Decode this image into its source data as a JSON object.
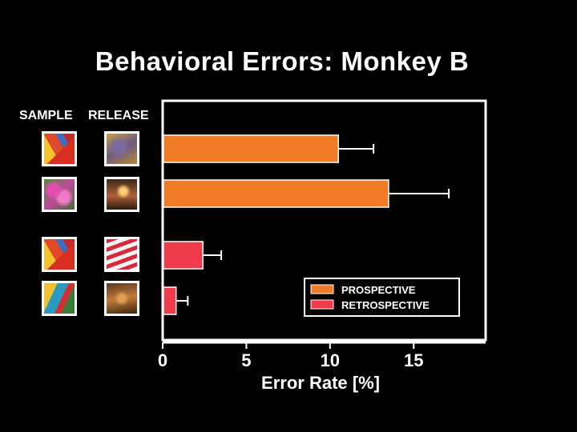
{
  "title": "Behavioral Errors: Monkey B",
  "columns": {
    "sample": "SAMPLE",
    "release": "RELEASE"
  },
  "stimuli": [
    {
      "sample": "sample-image-1-icon",
      "release": "release-image-1-icon"
    },
    {
      "sample": "sample-image-2-icon",
      "release": "release-image-2-icon"
    },
    {
      "sample": "sample-image-3-icon",
      "release": "release-image-3-icon"
    },
    {
      "sample": "sample-image-4-icon",
      "release": "release-image-4-icon"
    }
  ],
  "colors": {
    "prospective": "#f07c28",
    "retrospective": "#ee3a4a",
    "frame": "#ffffff"
  },
  "chart_data": {
    "type": "bar",
    "orientation": "horizontal",
    "xlabel": "Error Rate [%]",
    "xticks": [
      0,
      5,
      10,
      15
    ],
    "xlim": [
      0,
      19.3
    ],
    "legend": {
      "placement": "bottom-right",
      "entries": [
        "PROSPECTIVE",
        "RETROSPECTIVE"
      ]
    },
    "series": [
      {
        "name": "PROSPECTIVE",
        "rows": [
          0,
          1
        ],
        "values": [
          10.5,
          13.5
        ],
        "errors": [
          2.1,
          3.6
        ]
      },
      {
        "name": "RETROSPECTIVE",
        "rows": [
          2,
          3
        ],
        "values": [
          2.4,
          0.8
        ],
        "errors": [
          1.1,
          0.7
        ]
      }
    ]
  }
}
